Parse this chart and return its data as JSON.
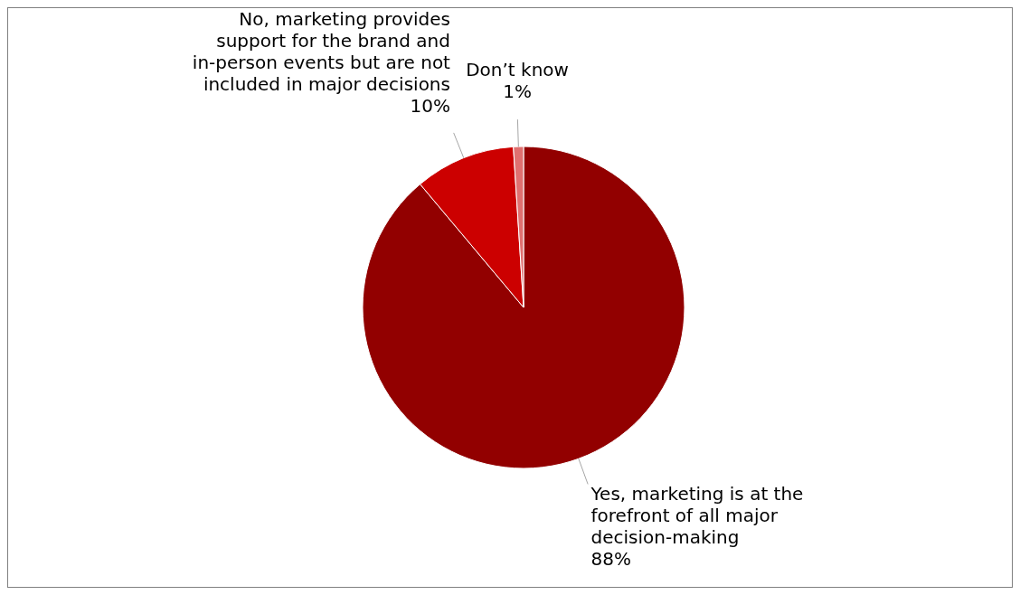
{
  "chart_data": {
    "type": "pie",
    "categories": [
      "Yes, marketing is at the forefront of all major decision-making",
      "No, marketing provides support for the brand and in-person events but are not included in major decisions",
      "Don’t know"
    ],
    "values": [
      88,
      10,
      1
    ],
    "colors": [
      "#920000",
      "#cc0000",
      "#e07070"
    ],
    "value_labels": [
      "88%",
      "10%",
      "1%"
    ],
    "legend": false
  }
}
